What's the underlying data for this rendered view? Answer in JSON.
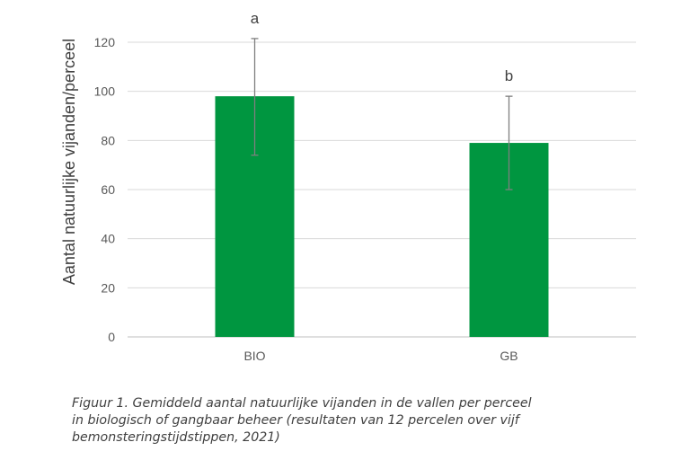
{
  "chart_data": {
    "type": "bar",
    "categories": [
      "BIO",
      "GB"
    ],
    "values": [
      98,
      79
    ],
    "error_high": [
      121.5,
      98
    ],
    "error_low": [
      74,
      60
    ],
    "significance_letters": [
      "a",
      "b"
    ],
    "title": "",
    "xlabel": "",
    "ylabel": "Aantal natuurlijke vijanden/perceel",
    "ylim": [
      0,
      120
    ],
    "yticks": [
      0,
      20,
      40,
      60,
      80,
      100,
      120
    ],
    "grid": true,
    "bar_color": "#009640",
    "error_color": "#7f7f7f",
    "grid_color": "#d9d9d9"
  },
  "caption": {
    "line1": "Figuur 1. Gemiddeld aantal natuurlijke vijanden in de vallen per perceel",
    "line2": "in biologisch of gangbaar beheer (resultaten van 12 percelen over vijf",
    "line3": "bemonsteringstijdstippen, 2021)"
  }
}
